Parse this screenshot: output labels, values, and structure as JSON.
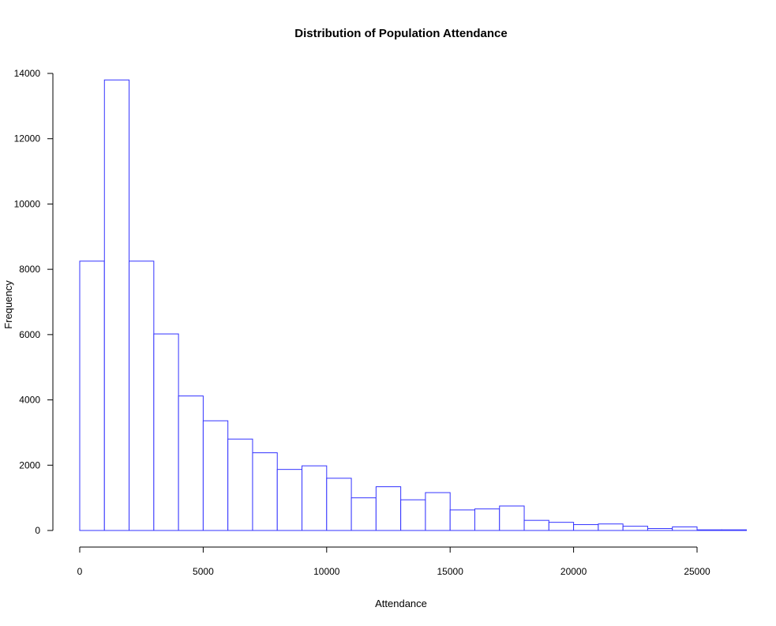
{
  "chart_data": {
    "type": "bar",
    "title": "Distribution of Population Attendance",
    "xlabel": "Attendance",
    "ylabel": "Frequency",
    "bar_color": "#3333ff",
    "bar_fill": "#ffffff",
    "bin_width": 1000,
    "bin_starts": [
      0,
      1000,
      2000,
      3000,
      4000,
      5000,
      6000,
      7000,
      8000,
      9000,
      10000,
      11000,
      12000,
      13000,
      14000,
      15000,
      16000,
      17000,
      18000,
      19000,
      20000,
      21000,
      22000,
      23000,
      24000,
      25000,
      26000
    ],
    "values": [
      8250,
      13800,
      8250,
      6020,
      4120,
      3360,
      2800,
      2380,
      1870,
      1980,
      1600,
      1000,
      1340,
      940,
      1160,
      630,
      660,
      750,
      310,
      250,
      180,
      200,
      130,
      60,
      110,
      20,
      20
    ],
    "xlim": [
      0,
      27000
    ],
    "ylim": [
      0,
      14000
    ],
    "x_ticks": [
      0,
      5000,
      10000,
      15000,
      20000,
      25000
    ],
    "y_ticks": [
      0,
      2000,
      4000,
      6000,
      8000,
      10000,
      12000,
      14000
    ],
    "grid": false,
    "legend": "none"
  }
}
